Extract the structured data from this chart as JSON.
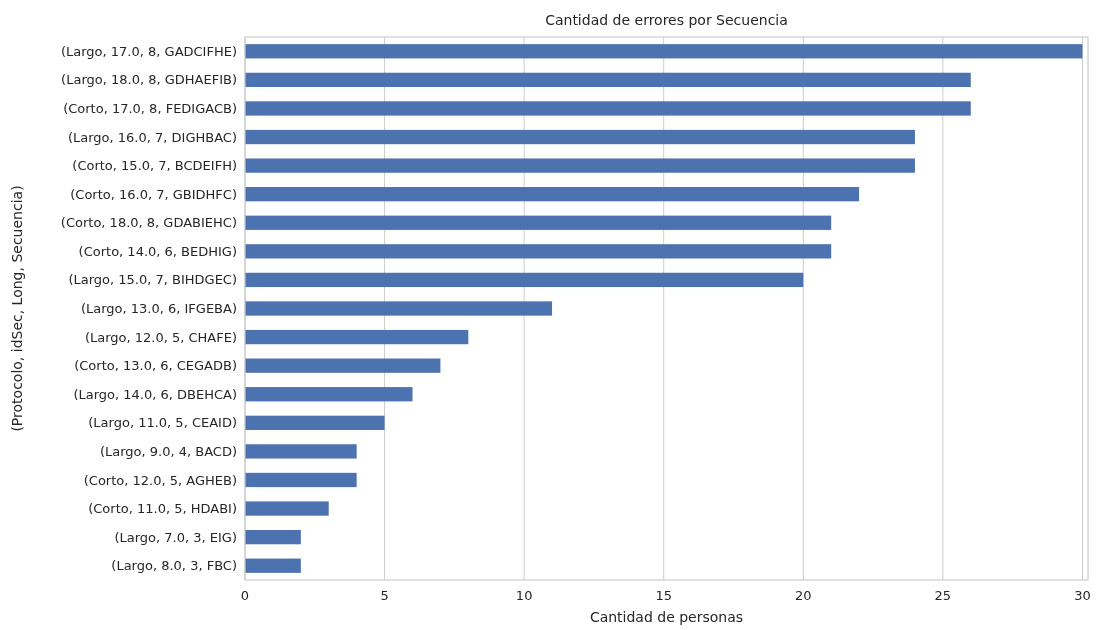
{
  "chart_data": {
    "type": "bar",
    "orientation": "horizontal",
    "title": "Cantidad de errores por Secuencia",
    "xlabel": "Cantidad de personas",
    "ylabel": "(Protocolo, idSec, Long, Secuencia)",
    "categories": [
      "(Largo, 17.0, 8, GADCIFHE)",
      "(Largo, 18.0, 8, GDHAEFIB)",
      "(Corto, 17.0, 8, FEDIGACB)",
      "(Largo, 16.0, 7, DIGHBAC)",
      "(Corto, 15.0, 7, BCDEIFH)",
      "(Corto, 16.0, 7, GBIDHFC)",
      "(Corto, 18.0, 8, GDABIEHC)",
      "(Corto, 14.0, 6, BEDHIG)",
      "(Largo, 15.0, 7, BIHDGEC)",
      "(Largo, 13.0, 6, IFGEBA)",
      "(Largo, 12.0, 5, CHAFE)",
      "(Corto, 13.0, 6, CEGADB)",
      "(Largo, 14.0, 6, DBEHCA)",
      "(Largo, 11.0, 5, CEAID)",
      "(Largo, 9.0, 4, BACD)",
      "(Corto, 12.0, 5, AGHEB)",
      "(Corto, 11.0, 5, HDABI)",
      "(Largo, 7.0, 3, EIG)",
      "(Largo, 8.0, 3, FBC)"
    ],
    "values": [
      30,
      26,
      26,
      24,
      24,
      22,
      21,
      21,
      20,
      11,
      8,
      7,
      6,
      5,
      4,
      4,
      3,
      2,
      2
    ],
    "color": "#4c72b0",
    "xlim": [
      0,
      30.2
    ],
    "xticks": [
      0,
      5,
      10,
      15,
      20,
      25,
      30
    ],
    "grid": "x"
  }
}
